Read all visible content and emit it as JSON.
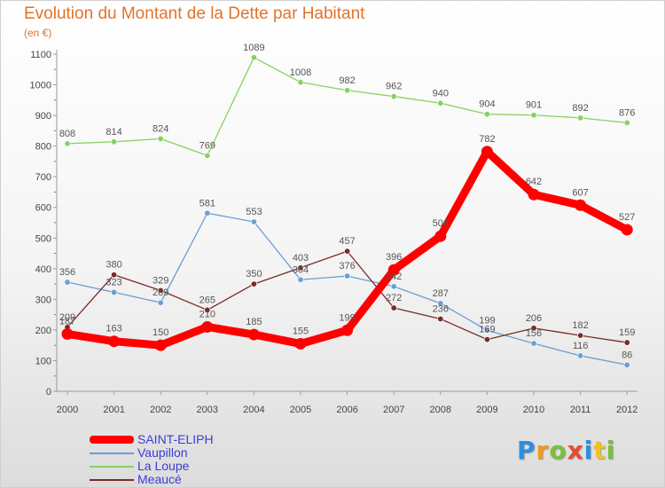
{
  "title": "Evolution du Montant de la Dette par Habitant",
  "subtitle": "(en €)",
  "logo_text": "Proxiti",
  "chart_data": {
    "type": "line",
    "title": "Evolution du Montant de la Dette par Habitant",
    "subtitle": "(en €)",
    "x": [
      2000,
      2001,
      2002,
      2003,
      2004,
      2005,
      2006,
      2007,
      2008,
      2009,
      2010,
      2011,
      2012
    ],
    "ylim": [
      0,
      1100
    ],
    "yticks": [
      0,
      100,
      200,
      300,
      400,
      500,
      600,
      700,
      800,
      900,
      1000,
      1100
    ],
    "grid": false,
    "legend_position": "bottom-left",
    "series": [
      {
        "name": "SAINT-ELIPH",
        "color": "#ff0000",
        "emphasis": "thick",
        "values": [
          187,
          163,
          150,
          210,
          185,
          155,
          199,
          396,
          506,
          782,
          642,
          607,
          527
        ]
      },
      {
        "name": "Vaupillon",
        "color": "#6a9ed4",
        "values": [
          356,
          323,
          289,
          581,
          553,
          364,
          376,
          342,
          287,
          199,
          156,
          116,
          86
        ]
      },
      {
        "name": "La Loupe",
        "color": "#88d160",
        "values": [
          808,
          814,
          824,
          769,
          1089,
          1008,
          982,
          962,
          940,
          904,
          901,
          892,
          876
        ]
      },
      {
        "name": "Meaucé",
        "color": "#7a2a2a",
        "values": [
          209,
          380,
          329,
          265,
          350,
          403,
          457,
          272,
          236,
          169,
          206,
          182,
          159
        ]
      }
    ]
  }
}
